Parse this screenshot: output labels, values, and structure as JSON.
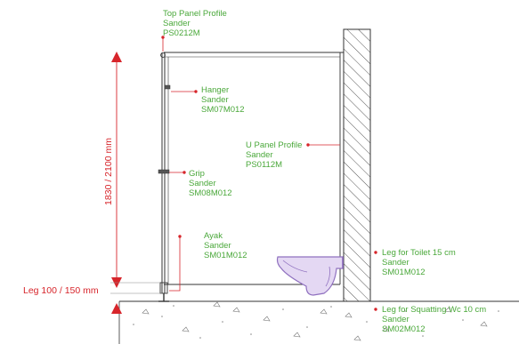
{
  "dimensions": {
    "height_label": "1830 / 2100 mm",
    "leg_label": "Leg 100 / 150 mm"
  },
  "callouts": {
    "top_panel": [
      "Top Panel Profile",
      "Sander",
      "PS0212M"
    ],
    "hanger": [
      "Hanger",
      "Sander",
      "SM07M012"
    ],
    "u_panel": [
      "U Panel Profile",
      "Sander",
      "PS0112M"
    ],
    "grip": [
      "Grip",
      "Sander",
      "SM08M012"
    ],
    "ayak": [
      "Ayak",
      "Sander",
      "SM01M012"
    ],
    "leg_toilet": [
      "Leg for Toilet 15 cm",
      "Sander",
      "SM01M012"
    ],
    "leg_squatting": [
      "Leg for Squatting Wc 10 cm",
      "Sander",
      "SM02M012"
    ]
  },
  "colors": {
    "label": "#4aa83a",
    "dimension": "#d7252b",
    "leader": "#d7252b",
    "toilet": "#9b7fc4",
    "line": "#333333"
  }
}
